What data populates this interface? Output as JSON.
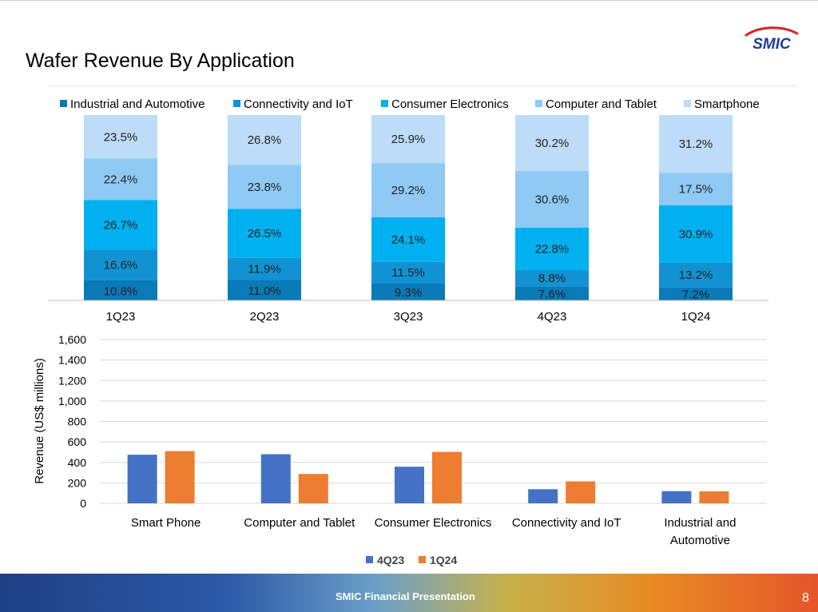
{
  "slide": {
    "title": "Wafer Revenue By Application",
    "logo_text": "SMIC",
    "footer": "SMIC Financial Presentation",
    "page_number": "8"
  },
  "colors": {
    "industrial": "#0a7ab8",
    "connectivity": "#1193d3",
    "consumer": "#00b0f0",
    "computer": "#8fcaf4",
    "smartphone": "#bcdcf7",
    "series_4q23": "#4472c4",
    "series_1q24": "#ed7d31",
    "logo": "#1f3c96",
    "logo_accent": "#e02020"
  },
  "chart_data": [
    {
      "type": "bar",
      "stacked": true,
      "percent": true,
      "categories": [
        "1Q23",
        "2Q23",
        "3Q23",
        "4Q23",
        "1Q24"
      ],
      "series": [
        {
          "name": "Industrial and Automotive",
          "values": [
            10.8,
            11.0,
            9.3,
            7.6,
            7.2
          ],
          "labels": [
            "10.8%",
            "11.0%",
            "9.3%",
            "7.6%",
            "7.2%"
          ]
        },
        {
          "name": "Connectivity and IoT",
          "values": [
            16.6,
            11.9,
            11.5,
            8.8,
            13.2
          ],
          "labels": [
            "16.6%",
            "11.9%",
            "11.5%",
            "8.8%",
            "13.2%"
          ]
        },
        {
          "name": "Consumer Electronics",
          "values": [
            26.7,
            26.5,
            24.1,
            22.8,
            30.9
          ],
          "labels": [
            "26.7%",
            "26.5%",
            "24.1%",
            "22.8%",
            "30.9%"
          ]
        },
        {
          "name": "Computer and Tablet",
          "values": [
            22.4,
            23.8,
            29.2,
            30.6,
            17.5
          ],
          "labels": [
            "22.4%",
            "23.8%",
            "29.2%",
            "30.6%",
            "17.5%"
          ]
        },
        {
          "name": "Smartphone",
          "values": [
            23.5,
            26.8,
            25.9,
            30.2,
            31.2
          ],
          "labels": [
            "23.5%",
            "26.8%",
            "25.9%",
            "30.2%",
            "31.2%"
          ]
        }
      ],
      "legend": "top",
      "grid": false
    },
    {
      "type": "bar",
      "categories": [
        "Smart Phone",
        "Computer and Tablet",
        "Consumer Electronics",
        "Connectivity and IoT",
        "Industrial and Automotive"
      ],
      "category_lines": [
        [
          "Smart Phone"
        ],
        [
          "Computer and Tablet"
        ],
        [
          "Consumer Electronics"
        ],
        [
          "Connectivity and IoT"
        ],
        [
          "Industrial and",
          "Automotive"
        ]
      ],
      "series": [
        {
          "name": "4Q23",
          "values": [
            475,
            480,
            358,
            138,
            119
          ]
        },
        {
          "name": "1Q24",
          "values": [
            510,
            287,
            503,
            215,
            117
          ]
        }
      ],
      "ylabel": "Revenue (US$  millions)",
      "ylim": [
        0,
        1600
      ],
      "yticks": [
        0,
        200,
        400,
        600,
        800,
        1000,
        1200,
        1400,
        1600
      ],
      "ytick_labels": [
        "0",
        "200",
        "400",
        "600",
        "800",
        "1,000",
        "1,200",
        "1,400",
        "1,600"
      ],
      "legend": "bottom",
      "grid": true
    }
  ]
}
